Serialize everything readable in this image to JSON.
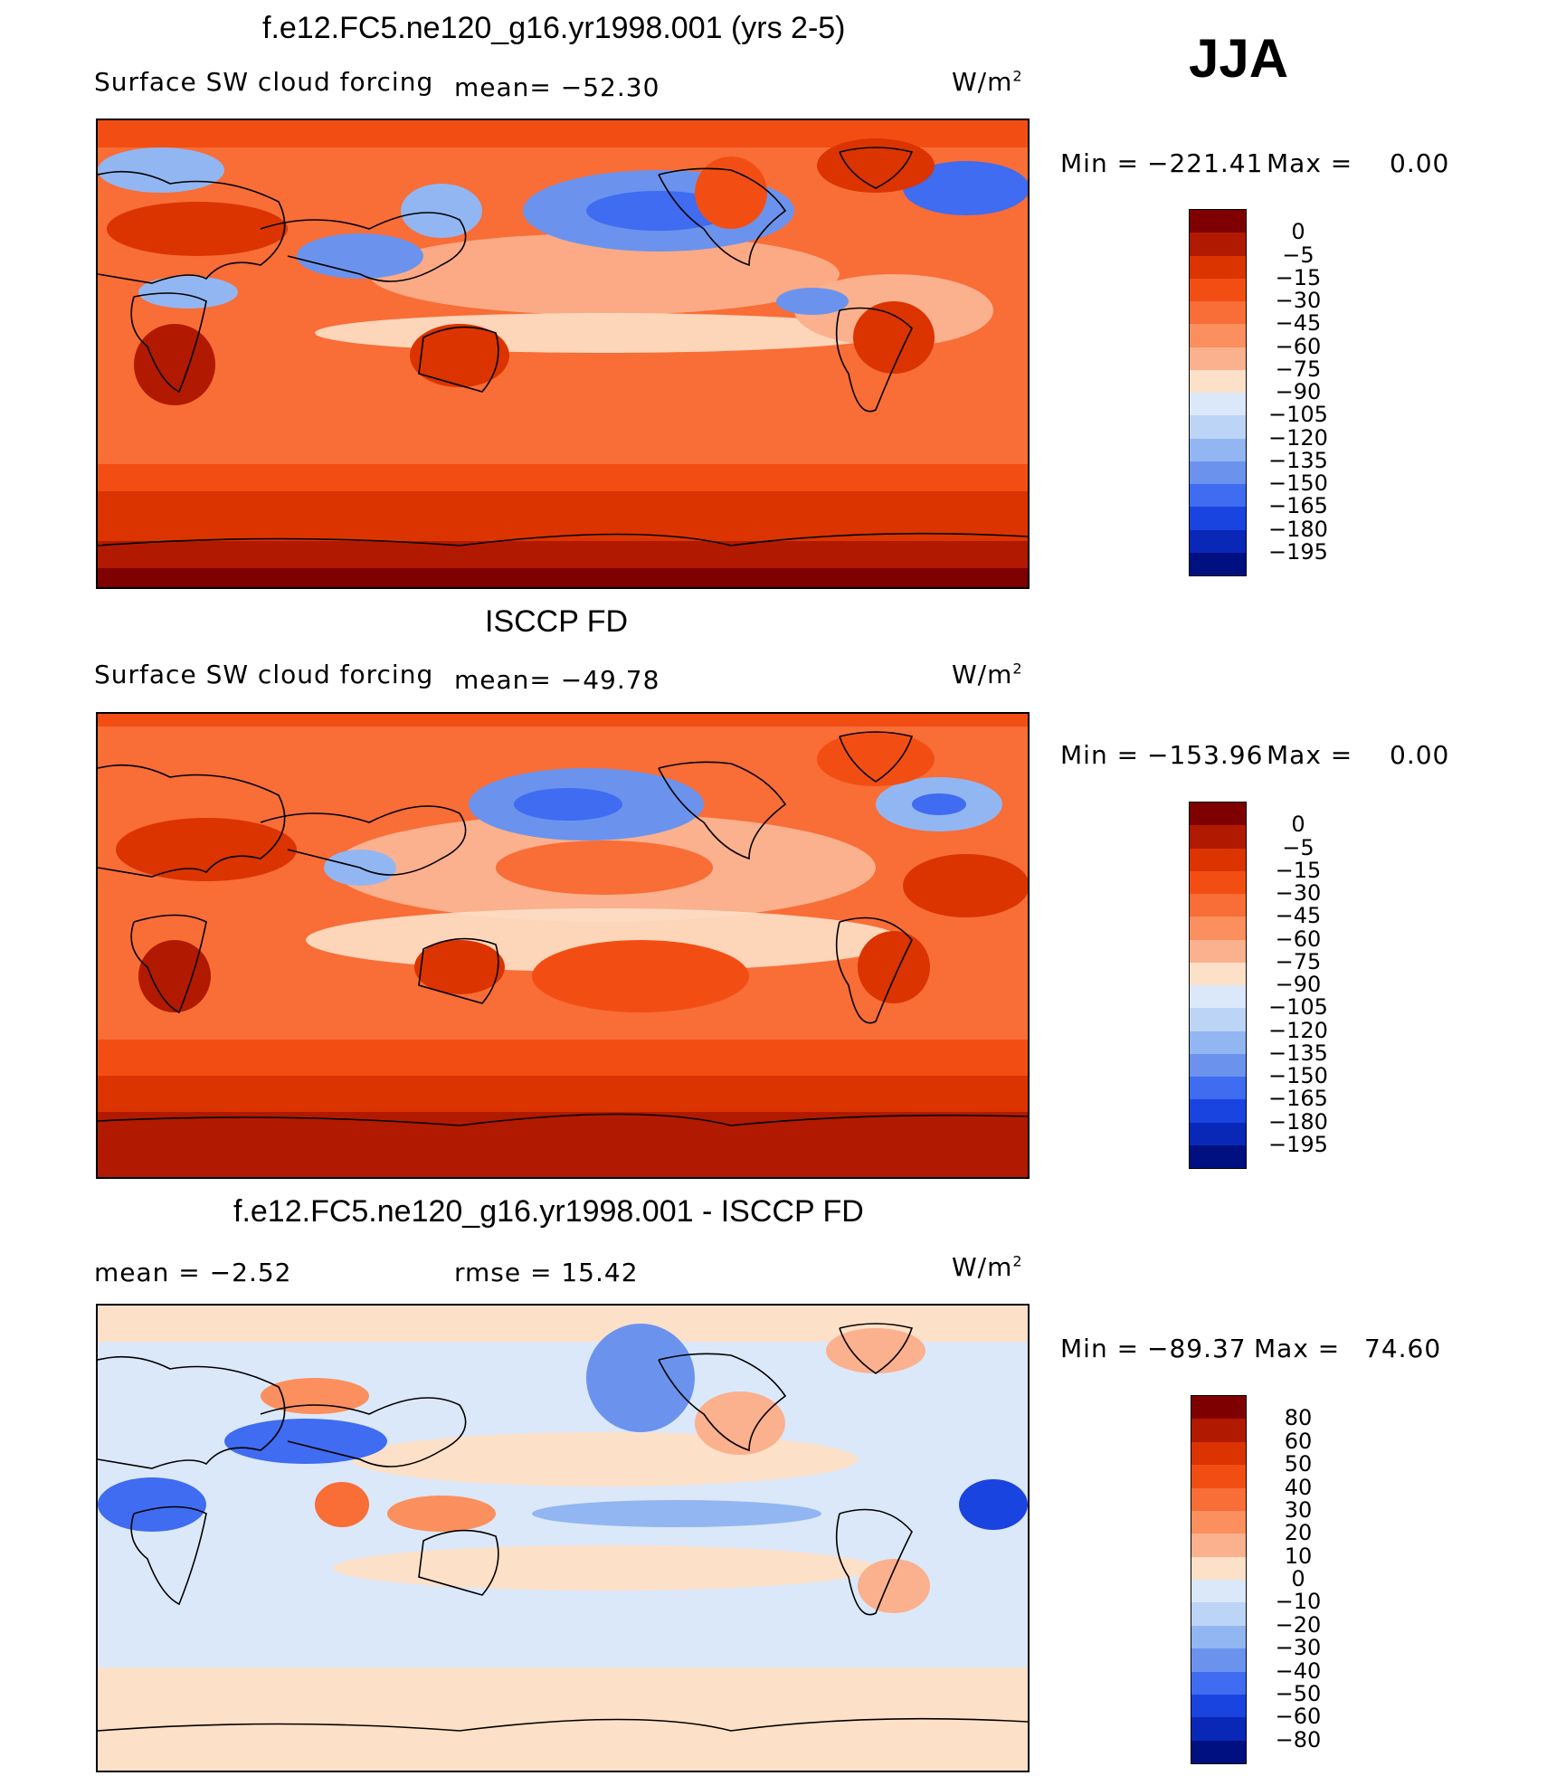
{
  "season": "JJA",
  "units": "W/m",
  "units_sup": "2",
  "panels": [
    {
      "title": "f.e12.FC5.ne120_g16.yr1998.001 (yrs 2-5)",
      "subtitle": "Surface SW cloud forcing",
      "mean_text": "mean= −52.30",
      "min_label": "Min  =",
      "min_value": "−221.41",
      "max_label": "Max  =",
      "max_value": "0.00"
    },
    {
      "title": "ISCCP FD",
      "subtitle": "Surface SW cloud forcing",
      "mean_text": "mean= −49.78",
      "min_label": "Min  =",
      "min_value": "−153.96",
      "max_label": "Max  =",
      "max_value": "0.00"
    },
    {
      "title": "f.e12.FC5.ne120_g16.yr1998.001 - ISCCP FD",
      "mean_text": "mean  =    −2.52",
      "rmse_text": "rmse  =    15.42",
      "min_label": "Min  =",
      "min_value": "−89.37",
      "max_label": "Max  =",
      "max_value": "74.60"
    }
  ],
  "chart_data": [
    {
      "type": "heatmap",
      "title": "f.e12.FC5.ne120_g16.yr1998.001 (yrs 2-5)",
      "subtitle": "Surface SW cloud forcing",
      "units": "W/m2",
      "mean": -52.3,
      "min": -221.41,
      "max": 0.0,
      "colorbar_labels": [
        "0",
        "−5",
        "−15",
        "−30",
        "−45",
        "−60",
        "−75",
        "−90",
        "−105",
        "−120",
        "−135",
        "−150",
        "−165",
        "−180",
        "−195"
      ],
      "colorbar_colors": [
        "#7f0000",
        "#b11a00",
        "#db3400",
        "#f24e14",
        "#f96d36",
        "#fb8f5e",
        "#fbb08e",
        "#fde0c8",
        "#dbe8f9",
        "#bcd4f6",
        "#92b6f2",
        "#6b93ee",
        "#3f6cf0",
        "#1a44e0",
        "#0a28b8",
        "#001080"
      ]
    },
    {
      "type": "heatmap",
      "title": "ISCCP FD",
      "subtitle": "Surface SW cloud forcing",
      "units": "W/m2",
      "mean": -49.78,
      "min": -153.96,
      "max": 0.0,
      "colorbar_labels": [
        "0",
        "−5",
        "−15",
        "−30",
        "−45",
        "−60",
        "−75",
        "−90",
        "−105",
        "−120",
        "−135",
        "−150",
        "−165",
        "−180",
        "−195"
      ],
      "colorbar_colors": [
        "#7f0000",
        "#b11a00",
        "#db3400",
        "#f24e14",
        "#f96d36",
        "#fb8f5e",
        "#fbb08e",
        "#fde0c8",
        "#dbe8f9",
        "#bcd4f6",
        "#92b6f2",
        "#6b93ee",
        "#3f6cf0",
        "#1a44e0",
        "#0a28b8",
        "#001080"
      ]
    },
    {
      "type": "heatmap",
      "title": "f.e12.FC5.ne120_g16.yr1998.001 - ISCCP FD",
      "units": "W/m2",
      "mean": -2.52,
      "rmse": 15.42,
      "min": -89.37,
      "max": 74.6,
      "colorbar_labels": [
        "80",
        "60",
        "50",
        "40",
        "30",
        "20",
        "10",
        "0",
        "−10",
        "−20",
        "−30",
        "−40",
        "−50",
        "−60",
        "−80"
      ],
      "colorbar_colors": [
        "#7f0000",
        "#b11a00",
        "#db3400",
        "#f24e14",
        "#f96d36",
        "#fb8f5e",
        "#fbb08e",
        "#fde0c8",
        "#dbe8f9",
        "#bcd4f6",
        "#92b6f2",
        "#6b93ee",
        "#3f6cf0",
        "#1a44e0",
        "#0a28b8",
        "#001080"
      ]
    }
  ]
}
